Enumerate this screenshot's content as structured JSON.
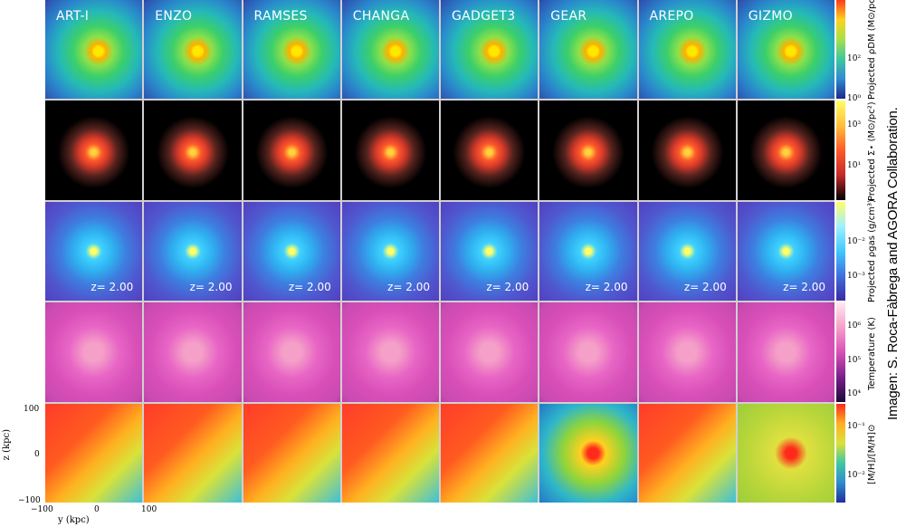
{
  "codes": [
    "ART-I",
    "ENZO",
    "RAMSES",
    "CHANGA",
    "GADGET3",
    "GEAR",
    "AREPO",
    "GIZMO"
  ],
  "redshift_label": "z= 2.00",
  "rows": [
    {
      "key": "dm",
      "title": "Projected ρDM (M⊙/pc²)",
      "ticks": [
        "10²",
        "10⁰"
      ]
    },
    {
      "key": "stars",
      "title": "Projected Σ⋆ (M⊙/pc²)",
      "ticks": [
        "10³",
        "10¹"
      ]
    },
    {
      "key": "gas",
      "title": "Projected ρgas (g/cm³)",
      "ticks": [
        "10⁻²",
        "10⁻³"
      ]
    },
    {
      "key": "temp",
      "title": "Temperature (K)",
      "ticks": [
        "10⁶",
        "10⁵",
        "10⁴"
      ]
    },
    {
      "key": "metal",
      "title": "[M/H]/[M/H]⊙",
      "ticks": [
        "10⁻¹",
        "10⁻²"
      ]
    }
  ],
  "axes": {
    "y_label": "z (kpc)",
    "x_label": "y (kpc)",
    "y_ticks": [
      "100",
      "0",
      "−100"
    ],
    "x_ticks": [
      "−100",
      "0",
      "100"
    ]
  },
  "credit": "Imagen: S. Roca-Fàbrega and AGORA Collaboration."
}
